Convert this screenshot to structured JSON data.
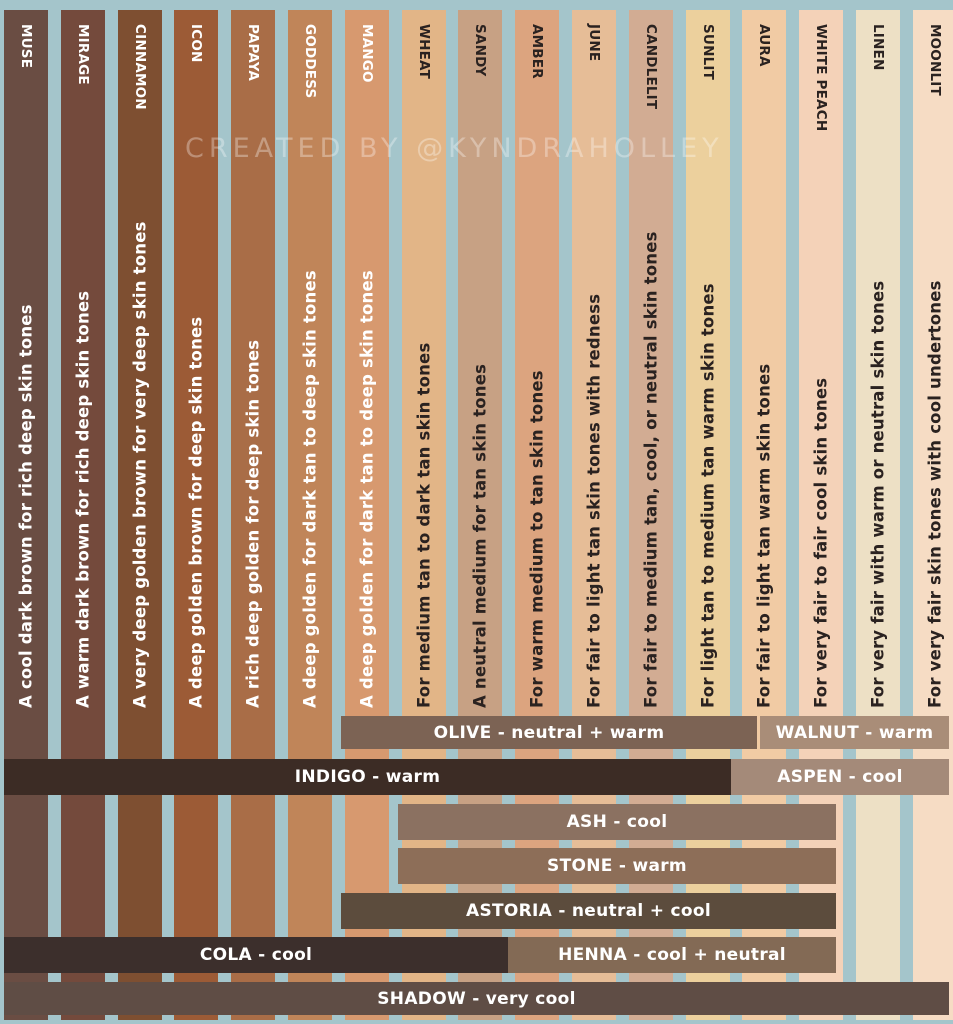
{
  "watermark": "CREATED BY @KYNDRAHOLLEY",
  "columns": [
    {
      "name": "MUSE",
      "desc": "A cool dark brown for rich deep skin tones",
      "color": "#6a4d43",
      "text_color": "#ffffff"
    },
    {
      "name": "MIRAGE",
      "desc": "A warm dark brown for rich deep skin tones",
      "color": "#744a3c",
      "text_color": "#ffffff"
    },
    {
      "name": "CINNAMON",
      "desc": "A very deep golden brown for very deep skin tones",
      "color": "#7e4f31",
      "text_color": "#ffffff"
    },
    {
      "name": "ICON",
      "desc": "A deep golden brown for deep skin tones",
      "color": "#9c5b36",
      "text_color": "#ffffff"
    },
    {
      "name": "PAPAYA",
      "desc": "A rich deep golden for deep skin tones",
      "color": "#a96d47",
      "text_color": "#ffffff"
    },
    {
      "name": "GODDESS",
      "desc": "A deep golden for dark tan to deep skin tones",
      "color": "#c08559",
      "text_color": "#ffffff"
    },
    {
      "name": "MANGO",
      "desc": "A deep golden for dark tan to deep skin tones",
      "color": "#d7996f",
      "text_color": "#ffffff"
    },
    {
      "name": "WHEAT",
      "desc": "For medium tan to dark tan skin tones",
      "color": "#e2b587",
      "text_color": "#2a2220"
    },
    {
      "name": "SANDY",
      "desc": "A neutral medium for tan skin tones",
      "color": "#c7a184",
      "text_color": "#2a2220"
    },
    {
      "name": "AMBER",
      "desc": "For warm medium to tan skin tones",
      "color": "#dca47f",
      "text_color": "#2a2220"
    },
    {
      "name": "JUNE",
      "desc": "For fair to light tan skin tones with redness",
      "color": "#e6bd97",
      "text_color": "#2a2220"
    },
    {
      "name": "CANDLELIT",
      "desc": "For fair to medium tan, cool, or neutral skin tones",
      "color": "#d2ac93",
      "text_color": "#2a2220"
    },
    {
      "name": "SUNLIT",
      "desc": "For light tan to medium tan warm skin tones",
      "color": "#ecd09d",
      "text_color": "#2a2220"
    },
    {
      "name": "AURA",
      "desc": "For fair to light tan warm skin tones",
      "color": "#f1cba4",
      "text_color": "#2a2220"
    },
    {
      "name": "WHITE PEACH",
      "desc": "For very fair to fair cool skin tones",
      "color": "#f4d2b8",
      "text_color": "#2a2220"
    },
    {
      "name": "LINEN",
      "desc": "For very fair with warm or neutral skin tones",
      "color": "#ede0c5",
      "text_color": "#2a2220"
    },
    {
      "name": "MOONLIT",
      "desc": "For very fair skin tones with cool undertones",
      "color": "#f6dcc4",
      "text_color": "#2a2220"
    }
  ],
  "bands": [
    {
      "label": "OLIVE - neutral + warm",
      "color": "#7c6354"
    },
    {
      "label": "WALNUT - warm",
      "color": "#a98d78"
    },
    {
      "label": "INDIGO - warm",
      "color": "#3c2c25"
    },
    {
      "label": "ASPEN - cool",
      "color": "#a48a79"
    },
    {
      "label": "ASH - cool",
      "color": "#8b7161"
    },
    {
      "label": "STONE - warm",
      "color": "#8d6e58"
    },
    {
      "label": "ASTORIA - neutral + cool",
      "color": "#5c4c3d"
    },
    {
      "label": "COLA - cool",
      "color": "#3c2f2c"
    },
    {
      "label": "HENNA - cool + neutral",
      "color": "#836a55"
    },
    {
      "label": "SHADOW - very cool",
      "color": "#5f4d45"
    }
  ]
}
